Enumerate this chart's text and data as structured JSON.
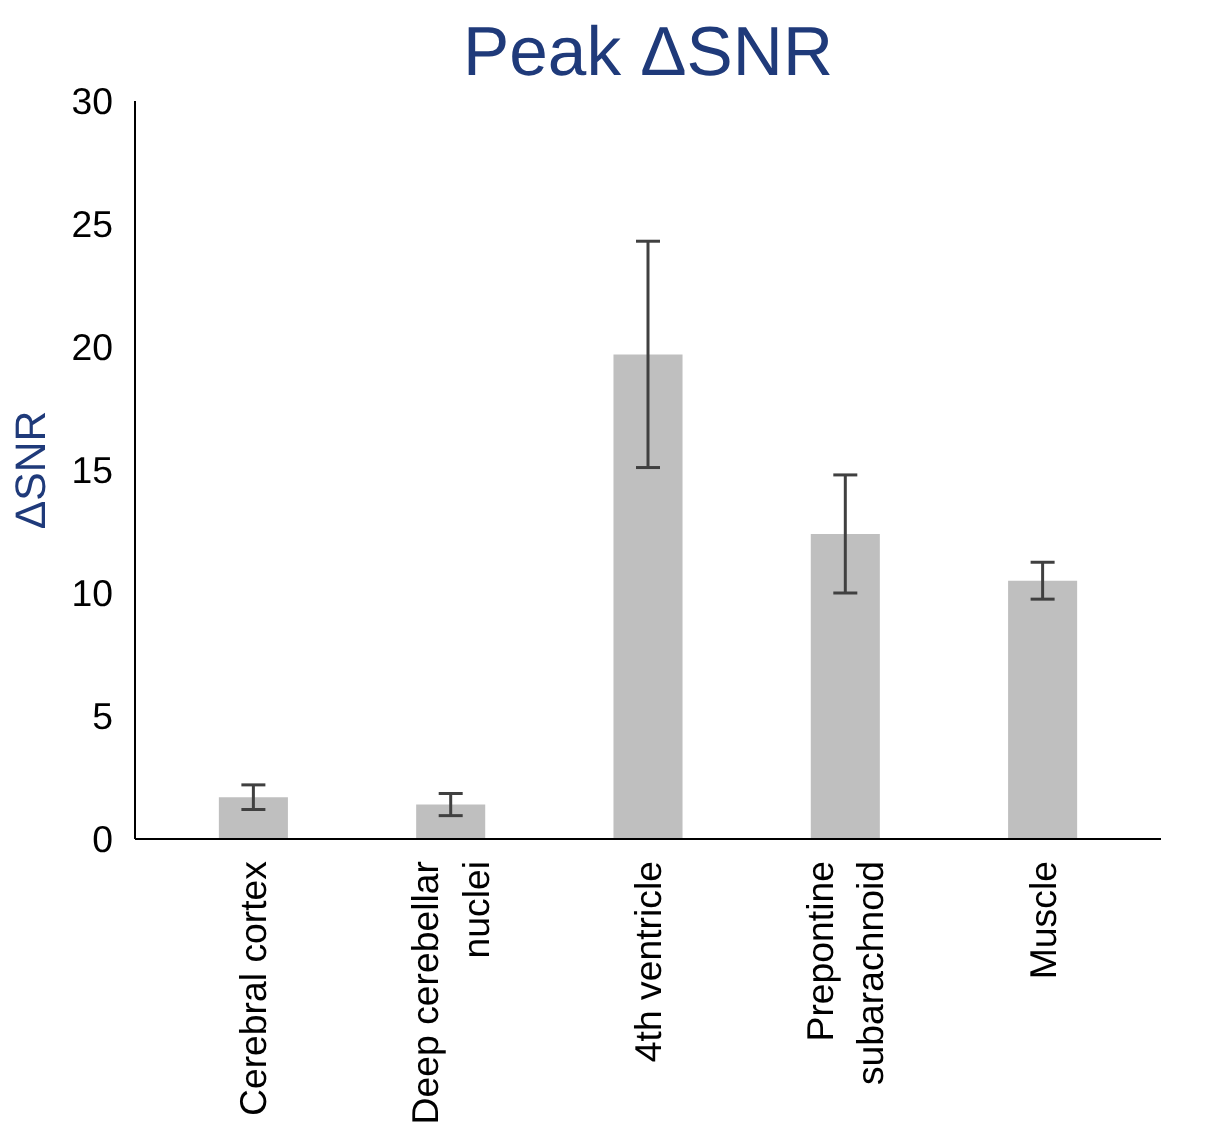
{
  "chart_data": {
    "type": "bar",
    "title": "Peak ΔSNR",
    "ylabel": "ΔSNR",
    "categories": [
      "Cerebral cortex",
      "Deep cerebellar\nnuclei",
      "4th ventricle",
      "Prepontine\nsubarachnoid",
      "Muscle"
    ],
    "values": [
      1.7,
      1.4,
      19.7,
      12.4,
      10.5
    ],
    "errors": [
      0.5,
      0.45,
      4.6,
      2.4,
      0.75
    ],
    "color": "#bfbfbf",
    "ylim": [
      0,
      30
    ],
    "yticks": [
      0,
      5,
      10,
      15,
      20,
      25,
      30
    ],
    "grid": false
  }
}
